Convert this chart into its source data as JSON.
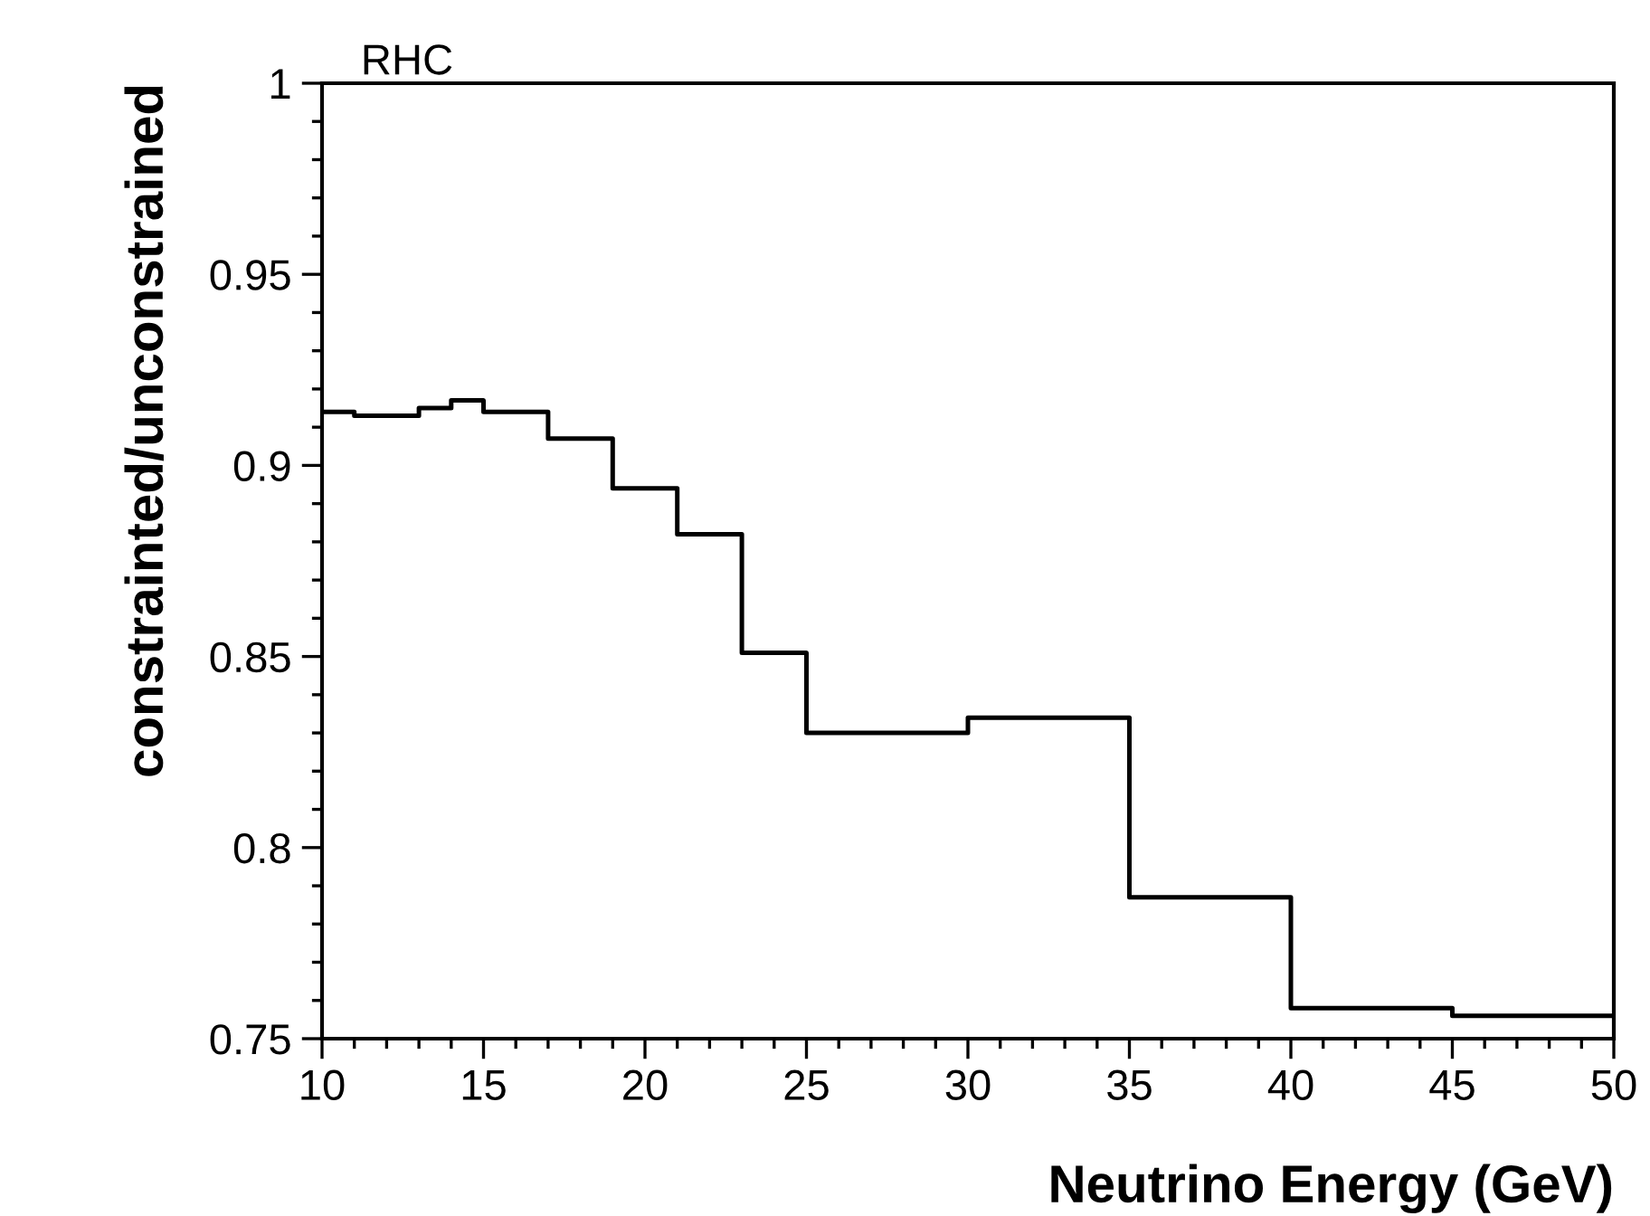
{
  "chart_data": {
    "type": "step",
    "title": "RHC",
    "xlabel": "Neutrino Energy (GeV)",
    "ylabel": "constrainted/unconstrained",
    "x": [
      10,
      11,
      13,
      14,
      15,
      17,
      19,
      21,
      23,
      25,
      30,
      35,
      40,
      45,
      50
    ],
    "values": [
      0.914,
      0.913,
      0.915,
      0.917,
      0.914,
      0.907,
      0.894,
      0.882,
      0.851,
      0.83,
      0.834,
      0.787,
      0.758,
      0.756,
      0.756
    ],
    "color": "#000000",
    "xlim": [
      10,
      50
    ],
    "xticks": [
      10,
      15,
      20,
      25,
      30,
      35,
      40,
      45,
      50
    ],
    "ylim": [
      0.75,
      1
    ],
    "yticks": [
      0.75,
      0.8,
      0.85,
      0.9,
      0.95,
      1
    ],
    "grid": false,
    "legend": false,
    "marker": "none",
    "line_style": "solid"
  }
}
